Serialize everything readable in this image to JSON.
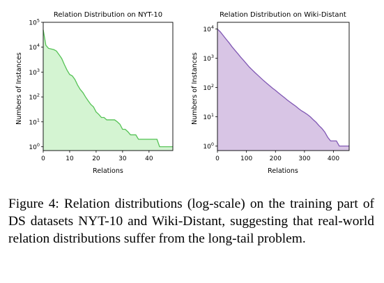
{
  "chart_data": [
    {
      "type": "area",
      "title": "Relation Distribution on NYT-10",
      "xlabel": "Relations",
      "ylabel": "Numbers of Instances",
      "xlim": [
        0,
        49
      ],
      "ylim": [
        0.7,
        100000
      ],
      "yscale": "log",
      "xticks": [
        0,
        10,
        20,
        30,
        40
      ],
      "yticks": [
        "10^0",
        "10^1",
        "10^2",
        "10^3",
        "10^4",
        "10^5"
      ],
      "grid": false,
      "colors": {
        "fill": "#d4f4d2",
        "line": "#55c255"
      },
      "x": [
        0,
        1,
        2,
        3,
        4,
        5,
        6,
        7,
        8,
        9,
        10,
        11,
        12,
        13,
        14,
        15,
        16,
        17,
        18,
        19,
        20,
        21,
        22,
        23,
        24,
        25,
        26,
        27,
        28,
        29,
        30,
        31,
        32,
        33,
        34,
        35,
        36,
        37,
        38,
        39,
        40,
        41,
        42,
        43,
        44,
        45,
        46,
        47,
        48,
        49
      ],
      "values": [
        50000,
        12000,
        9000,
        8500,
        8000,
        7000,
        5000,
        3500,
        2000,
        1200,
        800,
        700,
        500,
        300,
        200,
        150,
        100,
        70,
        50,
        40,
        25,
        20,
        15,
        15,
        12,
        12,
        12,
        12,
        10,
        8,
        5,
        5,
        4,
        3,
        3,
        3,
        2,
        2,
        2,
        2,
        2,
        2,
        2,
        2,
        1,
        1,
        1,
        1,
        1,
        1
      ]
    },
    {
      "type": "area",
      "title": "Relation Distribution on Wiki-Distant",
      "xlabel": "Relations",
      "ylabel": "Numbers of Instances",
      "xlim": [
        0,
        454
      ],
      "ylim": [
        0.7,
        17000
      ],
      "yscale": "log",
      "xticks": [
        0,
        100,
        200,
        300,
        400
      ],
      "yticks": [
        "10^0",
        "10^1",
        "10^2",
        "10^3",
        "10^4"
      ],
      "grid": false,
      "colors": {
        "fill": "#d8c5e5",
        "line": "#8058b4"
      },
      "x": [
        0,
        10,
        20,
        30,
        40,
        50,
        60,
        70,
        80,
        90,
        100,
        110,
        120,
        130,
        140,
        150,
        160,
        170,
        180,
        190,
        200,
        210,
        220,
        230,
        240,
        250,
        260,
        270,
        280,
        290,
        300,
        310,
        320,
        330,
        340,
        350,
        360,
        370,
        380,
        390,
        400,
        410,
        420,
        430,
        440,
        450,
        454
      ],
      "values": [
        10000,
        8000,
        6000,
        4500,
        3400,
        2500,
        1900,
        1450,
        1100,
        850,
        650,
        500,
        400,
        320,
        260,
        210,
        170,
        140,
        115,
        95,
        80,
        66,
        55,
        46,
        38,
        32,
        27,
        23,
        19,
        16,
        14,
        12,
        10,
        8,
        6.5,
        5,
        4,
        3,
        2,
        1.5,
        1.5,
        1.5,
        1,
        1,
        1,
        1,
        1
      ]
    }
  ],
  "caption": "Figure 4: Relation distributions (log-scale) on the training part of DS datasets NYT-10 and Wiki-Distant, suggesting that real-world relation distributions suffer from the long-tail problem."
}
